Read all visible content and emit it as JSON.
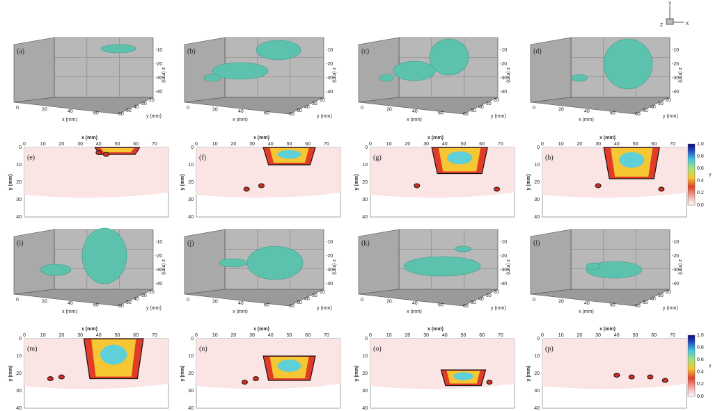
{
  "triad": {
    "y": "Y",
    "z": "Z",
    "x": "X"
  },
  "panels_3d": [
    {
      "label": "(a)"
    },
    {
      "label": "(b)"
    },
    {
      "label": "(c)"
    },
    {
      "label": "(d)"
    },
    {
      "label": "(i)"
    },
    {
      "label": "(j)"
    },
    {
      "label": "(k)"
    },
    {
      "label": "(l)"
    }
  ],
  "panels_2d": [
    {
      "label": "(e)"
    },
    {
      "label": "(f)"
    },
    {
      "label": "(g)"
    },
    {
      "label": "(h)"
    },
    {
      "label": "(m)"
    },
    {
      "label": "(n)"
    },
    {
      "label": "(o)"
    },
    {
      "label": "(p)"
    }
  ],
  "axis_3d": {
    "x_label": "x (mm)",
    "y_label": "y (mm)",
    "z_label": "z (mm)",
    "x_ticks": [
      "0",
      "20",
      "40",
      "60"
    ],
    "y_ticks": [
      "60",
      "50",
      "40",
      "30",
      "20"
    ],
    "z_ticks": [
      "-10",
      "-20",
      "-30",
      "-40"
    ]
  },
  "axis_2d": {
    "x_label": "x (mm)",
    "y_label": "y (mm)",
    "x_ticks": [
      "0",
      "10",
      "20",
      "30",
      "40",
      "50",
      "60",
      "70"
    ],
    "y_ticks": [
      "0",
      "10",
      "20",
      "30",
      "40"
    ]
  },
  "colorbar": {
    "label": "γ",
    "ticks": [
      "0.0",
      "0.2",
      "0.4",
      "0.6",
      "0.8",
      "1.0"
    ]
  }
}
